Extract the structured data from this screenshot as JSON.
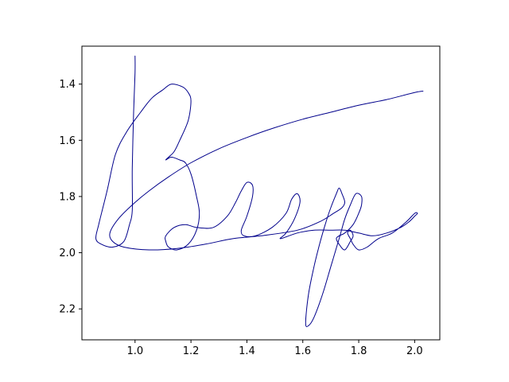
{
  "chart_data": {
    "type": "line",
    "title": "",
    "xlabel": "",
    "ylabel": "",
    "xlim": [
      0.81,
      2.09
    ],
    "ylim": [
      2.31,
      1.265
    ],
    "y_inverted": true,
    "grid": false,
    "legend": "none",
    "x_ticks": [
      "1.0",
      "1.2",
      "1.4",
      "1.6",
      "1.8",
      "2.0"
    ],
    "y_ticks": [
      "1.4",
      "1.6",
      "1.8",
      "2.0",
      "2.2"
    ],
    "series": [
      {
        "color": "#00008b",
        "points": [
          [
            1.0,
            1.3
          ],
          [
            1.0,
            1.36
          ],
          [
            0.995,
            1.5
          ],
          [
            0.99,
            1.7
          ],
          [
            0.99,
            1.85
          ],
          [
            0.98,
            1.9
          ],
          [
            0.96,
            1.96
          ],
          [
            0.92,
            1.98
          ],
          [
            0.88,
            1.97
          ],
          [
            0.86,
            1.95
          ],
          [
            0.87,
            1.9
          ],
          [
            0.9,
            1.78
          ],
          [
            0.93,
            1.65
          ],
          [
            0.97,
            1.57
          ],
          [
            1.02,
            1.5
          ],
          [
            1.06,
            1.45
          ],
          [
            1.1,
            1.42
          ],
          [
            1.13,
            1.4
          ],
          [
            1.17,
            1.41
          ],
          [
            1.19,
            1.43
          ],
          [
            1.2,
            1.46
          ],
          [
            1.19,
            1.53
          ],
          [
            1.16,
            1.6
          ],
          [
            1.14,
            1.64
          ],
          [
            1.12,
            1.66
          ],
          [
            1.11,
            1.67
          ],
          [
            1.13,
            1.66
          ],
          [
            1.16,
            1.67
          ],
          [
            1.18,
            1.68
          ],
          [
            1.2,
            1.72
          ],
          [
            1.22,
            1.8
          ],
          [
            1.23,
            1.86
          ],
          [
            1.22,
            1.92
          ],
          [
            1.19,
            1.97
          ],
          [
            1.15,
            1.99
          ],
          [
            1.12,
            1.98
          ],
          [
            1.11,
            1.96
          ],
          [
            1.11,
            1.94
          ],
          [
            1.14,
            1.91
          ],
          [
            1.18,
            1.9
          ],
          [
            1.22,
            1.91
          ],
          [
            1.28,
            1.91
          ],
          [
            1.33,
            1.87
          ],
          [
            1.36,
            1.82
          ],
          [
            1.38,
            1.78
          ],
          [
            1.4,
            1.75
          ],
          [
            1.42,
            1.76
          ],
          [
            1.42,
            1.8
          ],
          [
            1.4,
            1.87
          ],
          [
            1.38,
            1.92
          ],
          [
            1.39,
            1.94
          ],
          [
            1.43,
            1.94
          ],
          [
            1.49,
            1.91
          ],
          [
            1.54,
            1.86
          ],
          [
            1.56,
            1.81
          ],
          [
            1.58,
            1.79
          ],
          [
            1.59,
            1.82
          ],
          [
            1.57,
            1.88
          ],
          [
            1.54,
            1.93
          ],
          [
            1.52,
            1.95
          ],
          [
            1.58,
            1.93
          ],
          [
            1.64,
            1.92
          ],
          [
            1.7,
            1.92
          ],
          [
            1.75,
            1.92
          ],
          [
            1.8,
            1.93
          ],
          [
            1.85,
            1.94
          ],
          [
            1.9,
            1.93
          ],
          [
            1.95,
            1.91
          ],
          [
            1.98,
            1.89
          ],
          [
            2.0,
            1.87
          ],
          [
            2.01,
            1.86
          ],
          [
            2.0,
            1.86
          ],
          [
            1.97,
            1.89
          ],
          [
            1.92,
            1.93
          ],
          [
            1.87,
            1.95
          ],
          [
            1.83,
            1.98
          ],
          [
            1.8,
            1.99
          ],
          [
            1.78,
            1.97
          ],
          [
            1.77,
            1.95
          ],
          [
            1.76,
            1.93
          ],
          [
            1.77,
            1.92
          ],
          [
            1.78,
            1.94
          ],
          [
            1.77,
            1.96
          ],
          [
            1.75,
            1.99
          ],
          [
            1.73,
            1.97
          ],
          [
            1.72,
            1.95
          ],
          [
            1.73,
            1.94
          ],
          [
            1.75,
            1.93
          ],
          [
            1.78,
            1.9
          ],
          [
            1.8,
            1.86
          ],
          [
            1.81,
            1.83
          ],
          [
            1.81,
            1.8
          ],
          [
            1.79,
            1.79
          ],
          [
            1.77,
            1.83
          ],
          [
            1.75,
            1.88
          ],
          [
            1.73,
            1.95
          ],
          [
            1.7,
            2.05
          ],
          [
            1.67,
            2.15
          ],
          [
            1.64,
            2.23
          ],
          [
            1.62,
            2.26
          ],
          [
            1.61,
            2.25
          ],
          [
            1.62,
            2.15
          ],
          [
            1.64,
            2.05
          ],
          [
            1.66,
            1.97
          ],
          [
            1.68,
            1.9
          ],
          [
            1.7,
            1.84
          ],
          [
            1.72,
            1.79
          ],
          [
            1.73,
            1.77
          ],
          [
            1.74,
            1.79
          ],
          [
            1.75,
            1.82
          ],
          [
            1.74,
            1.84
          ],
          [
            1.71,
            1.86
          ],
          [
            1.66,
            1.89
          ],
          [
            1.58,
            1.92
          ],
          [
            1.45,
            1.94
          ],
          [
            1.35,
            1.95
          ],
          [
            1.25,
            1.97
          ],
          [
            1.15,
            1.985
          ],
          [
            1.05,
            1.99
          ],
          [
            0.96,
            1.98
          ],
          [
            0.92,
            1.96
          ],
          [
            0.91,
            1.93
          ],
          [
            0.94,
            1.88
          ],
          [
            0.99,
            1.83
          ],
          [
            1.05,
            1.78
          ],
          [
            1.12,
            1.73
          ],
          [
            1.2,
            1.68
          ],
          [
            1.3,
            1.63
          ],
          [
            1.4,
            1.59
          ],
          [
            1.5,
            1.555
          ],
          [
            1.6,
            1.525
          ],
          [
            1.7,
            1.5
          ],
          [
            1.8,
            1.475
          ],
          [
            1.9,
            1.455
          ],
          [
            2.0,
            1.43
          ],
          [
            2.03,
            1.425
          ]
        ]
      }
    ]
  }
}
